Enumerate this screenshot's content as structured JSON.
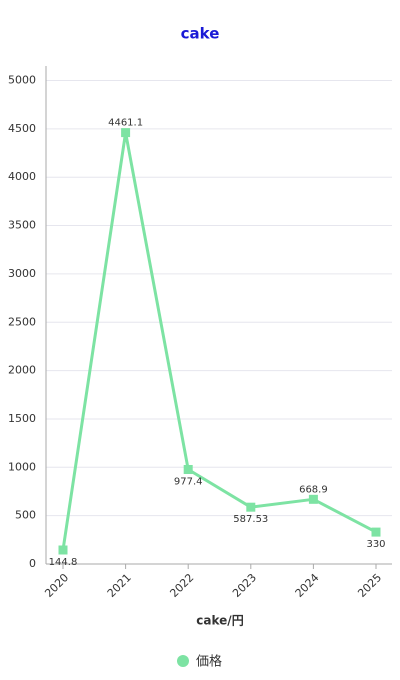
{
  "chart_data": {
    "type": "line",
    "title": "cake",
    "x_label": "cake/円",
    "categories": [
      "2020",
      "2021",
      "2022",
      "2023",
      "2024",
      "2025"
    ],
    "series": [
      {
        "name": "価格",
        "color": "#7de3a3",
        "values": [
          144.8,
          4461.1,
          977.4,
          587.53,
          668.9,
          330
        ]
      }
    ],
    "ylim": [
      0,
      5150
    ],
    "yticks": [
      0,
      500,
      1000,
      1500,
      2000,
      2500,
      3000,
      3500,
      4000,
      4500,
      5000
    ],
    "grid": true,
    "legend": "bottom"
  }
}
